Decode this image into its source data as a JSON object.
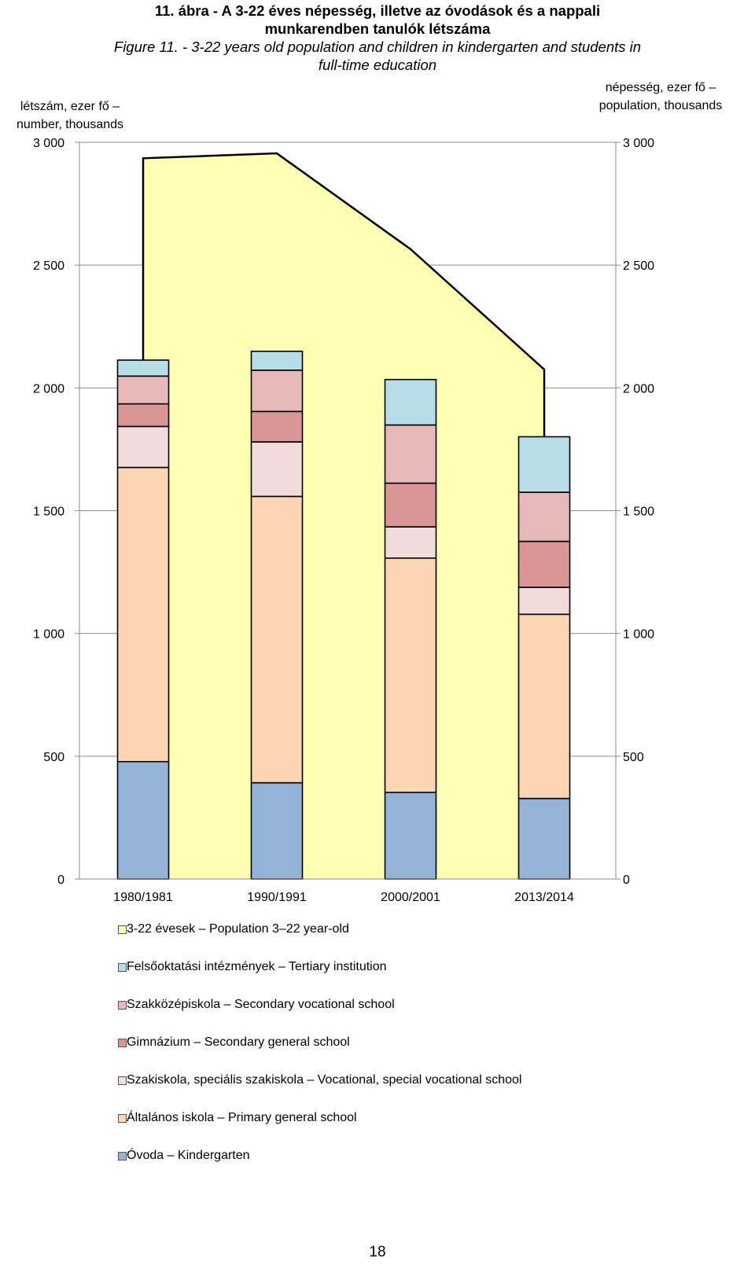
{
  "chart_data": {
    "type": "bar",
    "subtype": "stacked-bar-with-area",
    "title_hu": "11. ábra - A 3-22 éves népesség, illetve az óvodások és a nappali munkarendben tanulók létszáma",
    "title_en": "Figure 11. - 3-22 years old population and children in kindergarten and students in full-time education",
    "ylabel_left": "létszám, ezer fő – number, thousands",
    "ylabel_right": "népesség, ezer fő – population, thousands",
    "ylim": [
      0,
      3000
    ],
    "yticks": [
      0,
      500,
      1000,
      1500,
      2000,
      2500,
      3000
    ],
    "ytick_labels": [
      "0",
      "500",
      "1 000",
      "1 500",
      "2 000",
      "2 500",
      "3 000"
    ],
    "gridlines": true,
    "categories": [
      "1980/1981",
      "1990/1991",
      "2000/2001",
      "2013/2014"
    ],
    "area": {
      "name": "3-22 évesek – Population 3–22 year-old",
      "values": [
        2935,
        2955,
        2565,
        2075
      ],
      "color": "#FFFFB3"
    },
    "series": [
      {
        "name": "Óvoda – Kindergarten",
        "color": "#95B3D7",
        "values": [
          478,
          392,
          353,
          328
        ]
      },
      {
        "name": "Általános iskola – Primary general school",
        "color": "#FCD5B4",
        "values": [
          1198,
          1166,
          954,
          750
        ]
      },
      {
        "name": "Szakiskola, speciális szakiskola – Vocational, special vocational school",
        "color": "#F2DCDB",
        "values": [
          167,
          222,
          127,
          110
        ]
      },
      {
        "name": "Gimnázium – Secondary general school",
        "color": "#DA9694",
        "values": [
          92,
          124,
          178,
          187
        ]
      },
      {
        "name": "Szakközépiskola – Secondary vocational school",
        "color": "#E6B9B8",
        "values": [
          113,
          168,
          237,
          200
        ]
      },
      {
        "name": "Felsőoktatási intézmények – Tertiary institution",
        "color": "#B7DEE8",
        "values": [
          65,
          77,
          185,
          226
        ]
      }
    ],
    "legend": [
      "3-22 évesek – Population 3–22 year-old",
      "Felsőoktatási intézmények – Tertiary institution",
      "Szakközépiskola – Secondary vocational school",
      "Gimnázium – Secondary general school",
      "Szakiskola, speciális szakiskola – Vocational, special vocational school",
      "Általános iskola – Primary general school",
      "Óvoda – Kindergarten"
    ],
    "legend_position": "bottom"
  },
  "title": {
    "hu_line1": "11. ábra - A 3-22 éves népesség, illetve az óvodások és a nappali",
    "hu_line2": "munkarendben tanulók létszáma",
    "en_line1": "Figure 11. - 3-22 years old population  and children in kindergarten and students in",
    "en_line2": "full-time education"
  },
  "axis_titles": {
    "left_line1": "létszám, ezer fő –",
    "left_line2": "number, thousands",
    "right_line1": "népesség, ezer fő –",
    "right_line2": "population, thousands"
  },
  "page_number": "18"
}
